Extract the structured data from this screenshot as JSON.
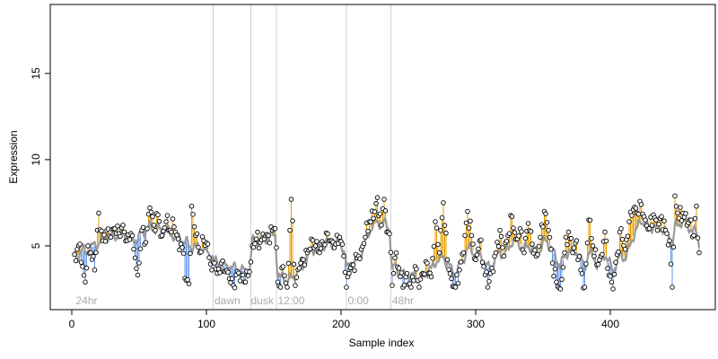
{
  "chart_data": {
    "type": "scatter",
    "title": "",
    "xlabel": "Sample index",
    "ylabel": "Expression",
    "xlim": [
      -16,
      478
    ],
    "ylim": [
      1.3,
      19.0
    ],
    "xticks": [
      0,
      100,
      200,
      300,
      400
    ],
    "yticks": [
      5,
      10,
      15
    ],
    "grid": false,
    "colors": {
      "trend": "#999999",
      "above": "#E69F00",
      "below": "#6495ED",
      "marker_fill": "#FFFFFF",
      "marker_stroke": "#000000",
      "divider": "#D3D3D3",
      "annotation_text": "#A9A9A9"
    },
    "section_labels": [
      {
        "x": 3,
        "text": "24hr"
      },
      {
        "x": 106,
        "text": "dawn"
      },
      {
        "x": 133,
        "text": "dusk"
      },
      {
        "x": 153,
        "text": "12:00"
      },
      {
        "x": 205,
        "text": "0:00"
      },
      {
        "x": 238,
        "text": "48hr"
      }
    ],
    "section_dividers": [
      105,
      133,
      152,
      204,
      237
    ],
    "anchors": [
      [
        2,
        4.5,
        4.6
      ],
      [
        4,
        4.8,
        4.3
      ],
      [
        6,
        5.1,
        4.7
      ],
      [
        8,
        3.8,
        4.8
      ],
      [
        10,
        2.9,
        4.6
      ],
      [
        12,
        5.0,
        4.7
      ],
      [
        14,
        4.6,
        4.9
      ],
      [
        17,
        3.6,
        5.0
      ],
      [
        20,
        6.9,
        5.2
      ],
      [
        23,
        5.3,
        5.4
      ],
      [
        26,
        5.9,
        5.6
      ],
      [
        29,
        5.5,
        5.5
      ],
      [
        32,
        6.0,
        5.6
      ],
      [
        35,
        5.7,
        5.6
      ],
      [
        38,
        6.2,
        5.7
      ],
      [
        41,
        5.3,
        5.6
      ],
      [
        44,
        5.7,
        5.5
      ],
      [
        47,
        4.3,
        5.4
      ],
      [
        49,
        3.3,
        5.3
      ],
      [
        52,
        5.9,
        5.8
      ],
      [
        55,
        5.2,
        5.9
      ],
      [
        58,
        7.2,
        6.1
      ],
      [
        61,
        6.2,
        6.0
      ],
      [
        64,
        6.8,
        6.0
      ],
      [
        67,
        5.6,
        5.8
      ],
      [
        70,
        6.4,
        5.9
      ],
      [
        73,
        5.9,
        5.7
      ],
      [
        76,
        6.1,
        5.6
      ],
      [
        79,
        5.4,
        5.5
      ],
      [
        82,
        4.9,
        5.3
      ],
      [
        85,
        3.0,
        5.2
      ],
      [
        87,
        2.8,
        5.0
      ],
      [
        89,
        7.3,
        5.0
      ],
      [
        92,
        5.6,
        4.9
      ],
      [
        95,
        4.6,
        4.9
      ],
      [
        98,
        5.3,
        4.8
      ],
      [
        101,
        5.1,
        4.6
      ],
      [
        104,
        3.6,
        4.4
      ],
      [
        106,
        4.0,
        4.1
      ],
      [
        108,
        3.4,
        4.0
      ],
      [
        111,
        4.0,
        3.9
      ],
      [
        114,
        3.5,
        3.8
      ],
      [
        117,
        3.1,
        3.8
      ],
      [
        120,
        2.7,
        3.7
      ],
      [
        123,
        3.5,
        3.7
      ],
      [
        126,
        3.3,
        3.6
      ],
      [
        129,
        2.9,
        3.5
      ],
      [
        132,
        3.5,
        3.6
      ],
      [
        134,
        5.0,
        5.2
      ],
      [
        137,
        5.4,
        5.4
      ],
      [
        140,
        5.2,
        5.3
      ],
      [
        143,
        5.4,
        5.4
      ],
      [
        146,
        5.6,
        5.5
      ],
      [
        149,
        5.9,
        5.6
      ],
      [
        151,
        6.0,
        5.7
      ],
      [
        153,
        2.9,
        3.3
      ],
      [
        155,
        2.6,
        3.1
      ],
      [
        157,
        3.8,
        3.2
      ],
      [
        160,
        2.6,
        3.0
      ],
      [
        163,
        7.7,
        3.1
      ],
      [
        166,
        2.7,
        3.3
      ],
      [
        169,
        3.7,
        3.6
      ],
      [
        172,
        4.2,
        3.9
      ],
      [
        175,
        4.6,
        4.3
      ],
      [
        178,
        5.4,
        4.8
      ],
      [
        181,
        5.0,
        4.9
      ],
      [
        184,
        4.6,
        4.8
      ],
      [
        187,
        5.1,
        5.0
      ],
      [
        190,
        5.7,
        5.2
      ],
      [
        193,
        5.3,
        5.2
      ],
      [
        196,
        5.1,
        5.1
      ],
      [
        199,
        5.5,
        5.2
      ],
      [
        202,
        4.4,
        4.8
      ],
      [
        204,
        2.6,
        3.7
      ],
      [
        206,
        3.4,
        3.8
      ],
      [
        209,
        3.9,
        4.0
      ],
      [
        212,
        4.3,
        4.2
      ],
      [
        215,
        4.8,
        4.6
      ],
      [
        218,
        5.5,
        5.2
      ],
      [
        221,
        6.4,
        5.9
      ],
      [
        224,
        6.6,
        6.2
      ],
      [
        227,
        7.8,
        6.4
      ],
      [
        230,
        6.2,
        6.3
      ],
      [
        232,
        7.7,
        6.3
      ],
      [
        234,
        5.8,
        6.2
      ],
      [
        236,
        5.7,
        6.0
      ],
      [
        238,
        2.7,
        3.4
      ],
      [
        240,
        4.3,
        3.9
      ],
      [
        243,
        3.7,
        3.5
      ],
      [
        246,
        2.6,
        3.2
      ],
      [
        249,
        3.4,
        3.5
      ],
      [
        252,
        2.6,
        3.1
      ],
      [
        255,
        3.8,
        3.4
      ],
      [
        258,
        2.6,
        3.0
      ],
      [
        261,
        3.4,
        3.2
      ],
      [
        264,
        4.0,
        3.5
      ],
      [
        267,
        3.2,
        3.6
      ],
      [
        270,
        6.4,
        4.1
      ],
      [
        273,
        4.6,
        4.2
      ],
      [
        276,
        7.5,
        4.4
      ],
      [
        279,
        4.2,
        4.0
      ],
      [
        282,
        3.1,
        3.6
      ],
      [
        285,
        2.6,
        3.4
      ],
      [
        288,
        3.6,
        3.8
      ],
      [
        291,
        4.6,
        4.3
      ],
      [
        294,
        7.0,
        4.8
      ],
      [
        297,
        5.6,
        4.8
      ],
      [
        300,
        4.2,
        4.4
      ],
      [
        303,
        5.3,
        4.5
      ],
      [
        306,
        3.8,
        4.1
      ],
      [
        309,
        2.6,
        3.7
      ],
      [
        312,
        3.7,
        3.9
      ],
      [
        315,
        4.6,
        4.3
      ],
      [
        318,
        5.9,
        4.7
      ],
      [
        321,
        4.4,
        4.5
      ],
      [
        324,
        5.6,
        4.8
      ],
      [
        327,
        6.7,
        5.3
      ],
      [
        330,
        5.4,
        5.2
      ],
      [
        333,
        6.0,
        5.1
      ],
      [
        336,
        4.6,
        4.8
      ],
      [
        339,
        6.3,
        5.0
      ],
      [
        342,
        5.1,
        4.9
      ],
      [
        345,
        4.4,
        4.6
      ],
      [
        348,
        5.5,
        4.8
      ],
      [
        351,
        7.0,
        5.3
      ],
      [
        354,
        5.9,
        5.2
      ],
      [
        357,
        4.0,
        4.7
      ],
      [
        360,
        2.9,
        4.2
      ],
      [
        363,
        2.5,
        3.9
      ],
      [
        366,
        4.6,
        4.3
      ],
      [
        369,
        5.8,
        4.8
      ],
      [
        372,
        4.6,
        4.6
      ],
      [
        375,
        5.3,
        4.7
      ],
      [
        378,
        3.6,
        4.2
      ],
      [
        381,
        2.6,
        3.8
      ],
      [
        384,
        6.5,
        4.6
      ],
      [
        387,
        5.0,
        4.4
      ],
      [
        390,
        3.9,
        4.0
      ],
      [
        393,
        4.4,
        4.1
      ],
      [
        396,
        5.8,
        4.6
      ],
      [
        399,
        3.3,
        4.0
      ],
      [
        402,
        2.5,
        3.6
      ],
      [
        405,
        4.5,
        4.0
      ],
      [
        408,
        6.0,
        4.5
      ],
      [
        411,
        4.8,
        4.3
      ],
      [
        414,
        6.4,
        4.8
      ],
      [
        417,
        7.1,
        5.6
      ],
      [
        420,
        6.9,
        6.0
      ],
      [
        423,
        7.4,
        6.5
      ],
      [
        426,
        6.5,
        6.3
      ],
      [
        429,
        6.0,
        6.0
      ],
      [
        432,
        6.8,
        6.2
      ],
      [
        435,
        5.9,
        5.9
      ],
      [
        438,
        6.7,
        6.1
      ],
      [
        441,
        5.9,
        5.8
      ],
      [
        444,
        5.3,
        5.5
      ],
      [
        446,
        2.6,
        5.0
      ],
      [
        448,
        7.9,
        6.1
      ],
      [
        451,
        6.6,
        6.3
      ],
      [
        454,
        6.9,
        6.5
      ],
      [
        457,
        6.2,
        6.2
      ],
      [
        460,
        6.5,
        6.0
      ],
      [
        462,
        5.6,
        5.8
      ],
      [
        464,
        7.3,
        5.8
      ],
      [
        466,
        4.6,
        5.2
      ]
    ]
  }
}
